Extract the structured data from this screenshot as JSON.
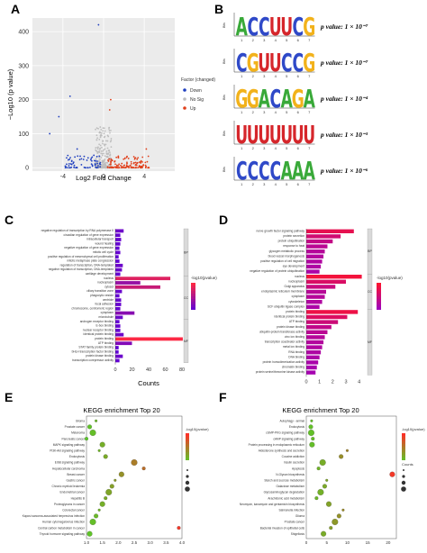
{
  "panels": {
    "a": "A",
    "b": "B",
    "c": "C",
    "d": "D",
    "e": "E",
    "f": "F"
  },
  "volcano": {
    "y_axis_label": "−Log10 (p value)",
    "x_axis_label": "Log2 Fold Change",
    "y_ticks": [
      "0",
      "100",
      "200",
      "300",
      "400"
    ],
    "x_ticks": [
      "-4",
      "0",
      "4"
    ],
    "legend_title": "Factor (changed)",
    "legend": [
      {
        "label": "Down",
        "color": "#1f3fbf"
      },
      {
        "label": "No Sig",
        "color": "#bdbdbd"
      },
      {
        "label": "Up",
        "color": "#e0401c"
      }
    ],
    "bg_color": "#ebebeb"
  },
  "motifs": {
    "y_label": "Bits",
    "x_ticks": [
      "1",
      "2",
      "3",
      "4",
      "5",
      "6",
      "7"
    ],
    "rows": [
      {
        "sequence": "ACCUUCG",
        "p_value": "p value: 1 × 10⁻⁷"
      },
      {
        "sequence": "CGUUCCG",
        "p_value": "p value: 1 × 10⁻⁷"
      },
      {
        "sequence": "GGACAGA",
        "p_value": "p value: 1 × 10⁻⁴"
      },
      {
        "sequence": "UUUUUUU",
        "p_value": "p value: 1 × 10⁻³"
      },
      {
        "sequence": "CCCCAAA",
        "p_value": "p value: 1 × 10⁻⁶"
      }
    ],
    "colors": {
      "A": "#39a939",
      "C": "#2f49c8",
      "G": "#f2b21b",
      "U": "#d6262b"
    }
  },
  "go_c": {
    "x_axis_label": "Counts",
    "x_ticks": [
      "0",
      "20",
      "40",
      "60",
      "80"
    ],
    "legend_title": "-log10(pvalue)",
    "groups": [
      "BP",
      "CC",
      "MF"
    ],
    "terms": [
      "negative regulation of transcription by RNA polymerase II",
      "circadian regulation of gene expression",
      "intracellular transport",
      "wound healing",
      "negative regulation of gene expression",
      "mitotic cell cycle",
      "positive regulation of mesenchymal cell proliferation",
      "mitotic metaphase plate congression",
      "regulation of transcription, DNA-templated",
      "negative regulation of transcription, DNA-templated",
      "cartilage development",
      "nucleus",
      "nucleoplasm",
      "cytosol",
      "ciliary transition zone",
      "phagocytic vesicle",
      "centriole",
      "focal adhesion",
      "chromosome, centromeric region",
      "cytoplasm",
      "microtubule",
      "androgen receptor binding",
      "E-box binding",
      "nuclear receptor binding",
      "identical protein binding",
      "protein binding",
      "ATP binding",
      "STAT family protein binding",
      "bHLH transcription factor binding",
      "protein kinase binding",
      "transcription corepressor activity"
    ],
    "counts": [
      10,
      6,
      7,
      6,
      5,
      6,
      4,
      5,
      9,
      8,
      6,
      66,
      30,
      54,
      8,
      5,
      7,
      7,
      6,
      23,
      9,
      5,
      6,
      6,
      10,
      81,
      20,
      4,
      4,
      9,
      5
    ]
  },
  "go_d": {
    "legend_title": "-log10(pvalue)",
    "groups": [
      "BP",
      "CC",
      "MF"
    ],
    "terms": [
      "nerve growth factor signaling pathway",
      "protein secretion",
      "protein ubiquitination",
      "response to heat",
      "glycogen metabolic process",
      "blood vessel morphogenesis",
      "positive regulation of cell migration",
      "eye development",
      "negative regulation of protein ubiquitination",
      "nucleus",
      "nucleoplasm",
      "Golgi apparatus",
      "endoplasmic reticulum membrane",
      "cytoplasm",
      "cytoskeleton",
      "SCF ubiquitin ligase complex",
      "protein binding",
      "identical protein binding",
      "ATP binding",
      "protein kinase binding",
      "ubiquitin-protein transferase activity",
      "zinc ion binding",
      "transcription coactivator activity",
      "metal ion binding",
      "RNA binding",
      "DNA binding",
      "protein homodimerization activity",
      "chromatin binding",
      "protein serine/threonine kinase activity"
    ],
    "counts": [
      3.6,
      2.6,
      2,
      1.6,
      1.4,
      1.3,
      1.2,
      1.1,
      1.0,
      4.2,
      3.0,
      2.2,
      1.5,
      1.4,
      1.2,
      1.0,
      3.9,
      3.1,
      2.4,
      1.9,
      1.6,
      1.4,
      1.3,
      1.2,
      1.1,
      1.0,
      0.9,
      0.8,
      0.7
    ],
    "x_ticks": [
      "0",
      "1",
      "2",
      "3",
      "4"
    ]
  },
  "kegg_e": {
    "title": "KEGG enrichment Top 20",
    "terms": [
      "Glioma",
      "Prostate cancer",
      "Melanoma",
      "Pancreatic cancer",
      "MAPK signaling pathway",
      "PI3K-Akt signaling pathway",
      "Endocytosis",
      "ErbB signaling pathway",
      "Hepatocellular carcinoma",
      "Breast cancer",
      "Gastric cancer",
      "Chronic myeloid leukemia",
      "Endometrial cancer",
      "Hepatitis B",
      "Proteoglycans in cancer",
      "Colorectal cancer",
      "Kaposi sarcoma-associated herpesvirus infection",
      "Human cytomegalovirus infection",
      "Central carbon metabolism in cancer",
      "Thyroid hormone signaling pathway"
    ],
    "x": [
      1.3,
      1.1,
      1.2,
      1.0,
      1.5,
      1.4,
      1.6,
      2.5,
      2.8,
      2.1,
      1.9,
      1.8,
      1.7,
      1.6,
      1.5,
      1.4,
      1.3,
      1.2,
      3.9,
      1.1
    ],
    "x_ticks": [
      "1.0",
      "1.5",
      "2.0",
      "2.5",
      "3.0",
      "3.5",
      "4.0"
    ],
    "legend_title": "-log10(pvalue)"
  },
  "kegg_f": {
    "title": "KEGG enrichment Top 20",
    "terms": [
      "Autophagy - animal",
      "Endocytosis",
      "cGMP-PKG signaling pathway",
      "cAMP signaling pathway",
      "Protein processing in endoplasmic reticulum",
      "Aldosterone synthesis and secretion",
      "Cocaine addiction",
      "Insulin secretion",
      "Apoptosis",
      "N-Glycan biosynthesis",
      "Starch and sucrose metabolism",
      "Galactose metabolism",
      "Glycosaminoglycan degradation",
      "Arachidonic acid metabolism",
      "Neomycin, kanamycin and gentamicin biosynthesis",
      "Salmonella infection",
      "Glioma",
      "Prostate cancer",
      "Bacterial invasion of epithelial cells",
      "Shigellosis"
    ],
    "x": [
      1.3,
      1.1,
      1.2,
      1.6,
      1.4,
      10,
      8.5,
      4.0,
      3.0,
      21,
      5,
      4.5,
      3.5,
      2.5,
      5.5,
      9,
      8,
      7,
      6,
      4.2
    ],
    "x_ticks": [
      "0",
      "5",
      "10",
      "15",
      "20"
    ],
    "legend_title": "-log10(pvalue)",
    "legend_size_title": "Counts"
  }
}
